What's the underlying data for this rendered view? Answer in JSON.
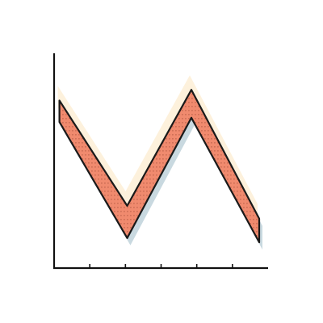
{
  "colors": {
    "background": "#ffffff",
    "axis": "#111111",
    "band_fill": "#f08a6e",
    "band_outline": "#1a1a1a",
    "band_stipple": "#7a2a1a",
    "shadow_back": "#fdf1dc",
    "shadow_front": "#b7ccd6"
  },
  "chart_data": {
    "type": "line",
    "style": "thick ribbon line with hatched fill and offset shadows",
    "title": "",
    "xlabel": "",
    "ylabel": "",
    "grid": false,
    "legend": "none",
    "xlim": [
      0,
      6
    ],
    "ylim": [
      0,
      10
    ],
    "x_ticks": [
      1,
      2,
      3,
      4,
      5
    ],
    "y_ticks": [],
    "series": [
      {
        "x": [
          0.15,
          2.05,
          3.85,
          5.75
        ],
        "y_upper": [
          7.8,
          2.9,
          8.3,
          2.3
        ],
        "y_lower": [
          6.8,
          1.4,
          7.0,
          1.2
        ]
      }
    ]
  }
}
